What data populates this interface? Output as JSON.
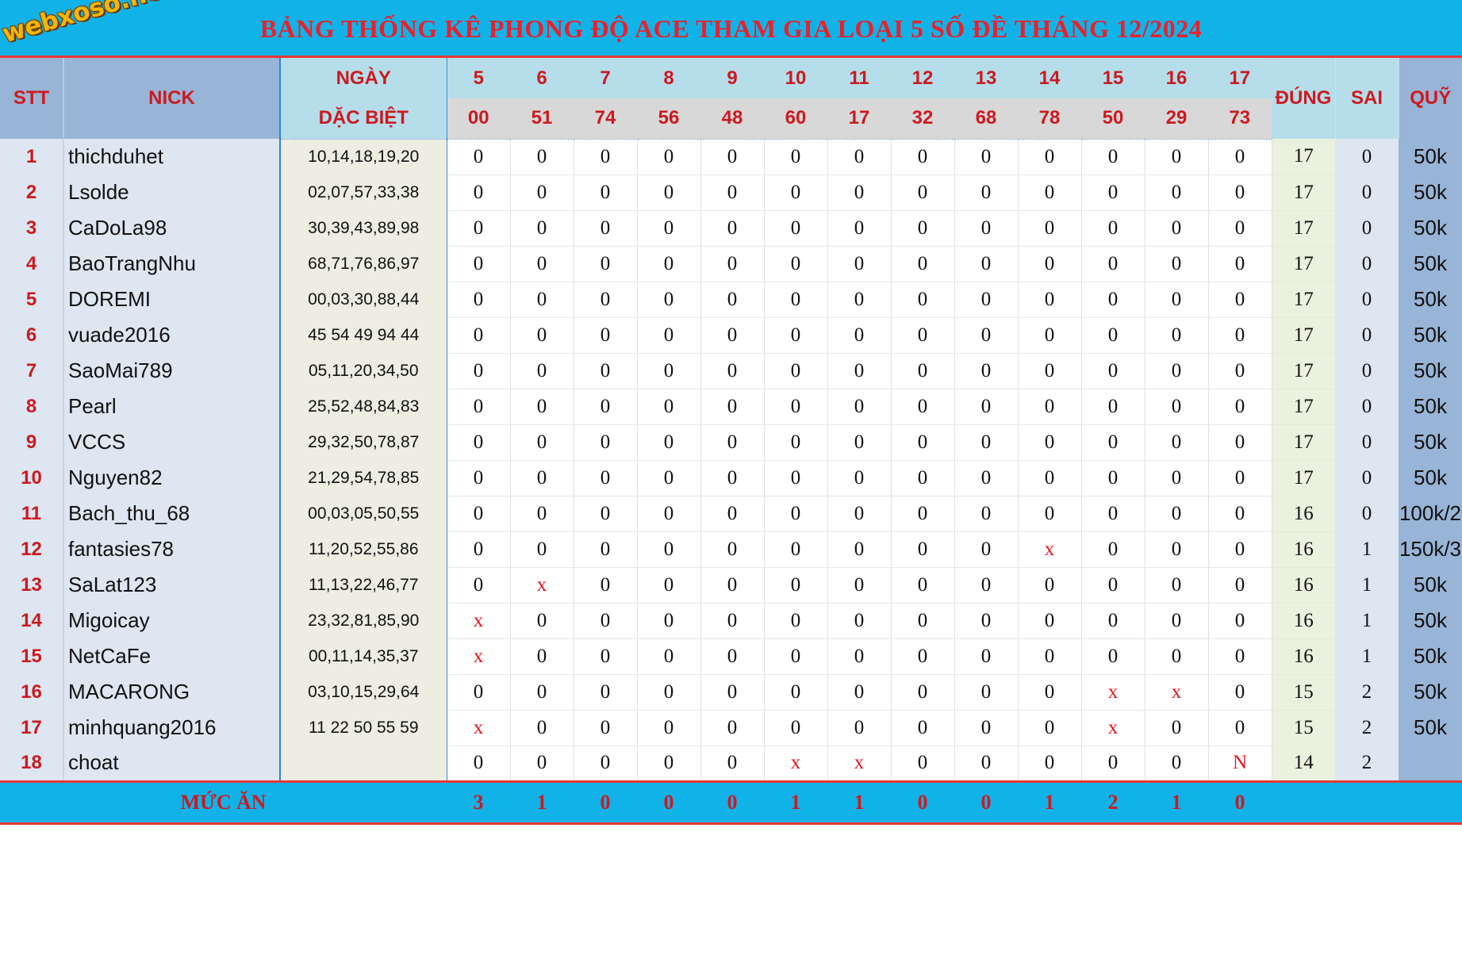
{
  "logo": "webxoso.net",
  "title": "BẢNG THỐNG KÊ PHONG ĐỘ ACE THAM GIA LOẠI 5 SỐ ĐỀ THÁNG 12/2024",
  "headers": {
    "stt": "STT",
    "nick": "NICK",
    "ngay": "NGÀY",
    "dac_biet": "DẶC BIỆT",
    "dung": "ĐÚNG",
    "sai": "SAI",
    "quy": "QUỸ"
  },
  "days": [
    "5",
    "6",
    "7",
    "8",
    "9",
    "10",
    "11",
    "12",
    "13",
    "14",
    "15",
    "16",
    "17"
  ],
  "results": [
    "00",
    "51",
    "74",
    "56",
    "48",
    "60",
    "17",
    "32",
    "68",
    "78",
    "50",
    "29",
    "73"
  ],
  "rows": [
    {
      "stt": "1",
      "nick": "thichduhet",
      "numbers": "10,14,18,19,20",
      "marks": [
        "0",
        "0",
        "0",
        "0",
        "0",
        "0",
        "0",
        "0",
        "0",
        "0",
        "0",
        "0",
        "0"
      ],
      "dung": "17",
      "sai": "0",
      "quy": "50k"
    },
    {
      "stt": "2",
      "nick": "Lsolde",
      "numbers": "02,07,57,33,38",
      "marks": [
        "0",
        "0",
        "0",
        "0",
        "0",
        "0",
        "0",
        "0",
        "0",
        "0",
        "0",
        "0",
        "0"
      ],
      "dung": "17",
      "sai": "0",
      "quy": "50k"
    },
    {
      "stt": "3",
      "nick": "CaDoLa98",
      "numbers": "30,39,43,89,98",
      "marks": [
        "0",
        "0",
        "0",
        "0",
        "0",
        "0",
        "0",
        "0",
        "0",
        "0",
        "0",
        "0",
        "0"
      ],
      "dung": "17",
      "sai": "0",
      "quy": "50k"
    },
    {
      "stt": "4",
      "nick": "BaoTrangNhu",
      "numbers": "68,71,76,86,97",
      "marks": [
        "0",
        "0",
        "0",
        "0",
        "0",
        "0",
        "0",
        "0",
        "0",
        "0",
        "0",
        "0",
        "0"
      ],
      "dung": "17",
      "sai": "0",
      "quy": "50k"
    },
    {
      "stt": "5",
      "nick": "DOREMI",
      "numbers": "00,03,30,88,44",
      "marks": [
        "0",
        "0",
        "0",
        "0",
        "0",
        "0",
        "0",
        "0",
        "0",
        "0",
        "0",
        "0",
        "0"
      ],
      "dung": "17",
      "sai": "0",
      "quy": "50k"
    },
    {
      "stt": "6",
      "nick": "vuade2016",
      "numbers": "45 54 49 94 44",
      "marks": [
        "0",
        "0",
        "0",
        "0",
        "0",
        "0",
        "0",
        "0",
        "0",
        "0",
        "0",
        "0",
        "0"
      ],
      "dung": "17",
      "sai": "0",
      "quy": "50k"
    },
    {
      "stt": "7",
      "nick": "SaoMai789",
      "numbers": "05,11,20,34,50",
      "marks": [
        "0",
        "0",
        "0",
        "0",
        "0",
        "0",
        "0",
        "0",
        "0",
        "0",
        "0",
        "0",
        "0"
      ],
      "dung": "17",
      "sai": "0",
      "quy": "50k"
    },
    {
      "stt": "8",
      "nick": "Pearl",
      "numbers": "25,52,48,84,83",
      "marks": [
        "0",
        "0",
        "0",
        "0",
        "0",
        "0",
        "0",
        "0",
        "0",
        "0",
        "0",
        "0",
        "0"
      ],
      "dung": "17",
      "sai": "0",
      "quy": "50k"
    },
    {
      "stt": "9",
      "nick": "VCCS",
      "numbers": "29,32,50,78,87",
      "marks": [
        "0",
        "0",
        "0",
        "0",
        "0",
        "0",
        "0",
        "0",
        "0",
        "0",
        "0",
        "0",
        "0"
      ],
      "dung": "17",
      "sai": "0",
      "quy": "50k"
    },
    {
      "stt": "10",
      "nick": "Nguyen82",
      "numbers": "21,29,54,78,85",
      "marks": [
        "0",
        "0",
        "0",
        "0",
        "0",
        "0",
        "0",
        "0",
        "0",
        "0",
        "0",
        "0",
        "0"
      ],
      "dung": "17",
      "sai": "0",
      "quy": "50k"
    },
    {
      "stt": "11",
      "nick": "Bach_thu_68",
      "numbers": "00,03,05,50,55",
      "marks": [
        "0",
        "0",
        "0",
        "0",
        "0",
        "0",
        "0",
        "0",
        "0",
        "0",
        "0",
        "0",
        "0"
      ],
      "dung": "16",
      "sai": "0",
      "quy": "100k/2"
    },
    {
      "stt": "12",
      "nick": "fantasies78",
      "numbers": "11,20,52,55,86",
      "marks": [
        "0",
        "0",
        "0",
        "0",
        "0",
        "0",
        "0",
        "0",
        "0",
        "x",
        "0",
        "0",
        "0"
      ],
      "dung": "16",
      "sai": "1",
      "quy": "150k/3"
    },
    {
      "stt": "13",
      "nick": "SaLat123",
      "numbers": "11,13,22,46,77",
      "marks": [
        "0",
        "x",
        "0",
        "0",
        "0",
        "0",
        "0",
        "0",
        "0",
        "0",
        "0",
        "0",
        "0"
      ],
      "dung": "16",
      "sai": "1",
      "quy": "50k"
    },
    {
      "stt": "14",
      "nick": "Migoicay",
      "numbers": "23,32,81,85,90",
      "marks": [
        "x",
        "0",
        "0",
        "0",
        "0",
        "0",
        "0",
        "0",
        "0",
        "0",
        "0",
        "0",
        "0"
      ],
      "dung": "16",
      "sai": "1",
      "quy": "50k"
    },
    {
      "stt": "15",
      "nick": "NetCaFe",
      "numbers": "00,11,14,35,37",
      "marks": [
        "x",
        "0",
        "0",
        "0",
        "0",
        "0",
        "0",
        "0",
        "0",
        "0",
        "0",
        "0",
        "0"
      ],
      "dung": "16",
      "sai": "1",
      "quy": "50k"
    },
    {
      "stt": "16",
      "nick": "MACARONG",
      "numbers": "03,10,15,29,64",
      "marks": [
        "0",
        "0",
        "0",
        "0",
        "0",
        "0",
        "0",
        "0",
        "0",
        "0",
        "x",
        "x",
        "0"
      ],
      "dung": "15",
      "sai": "2",
      "quy": "50k"
    },
    {
      "stt": "17",
      "nick": "minhquang2016",
      "numbers": "11 22 50 55 59",
      "marks": [
        "x",
        "0",
        "0",
        "0",
        "0",
        "0",
        "0",
        "0",
        "0",
        "0",
        "x",
        "0",
        "0"
      ],
      "dung": "15",
      "sai": "2",
      "quy": "50k"
    },
    {
      "stt": "18",
      "nick": "choat",
      "numbers": "",
      "marks": [
        "0",
        "0",
        "0",
        "0",
        "0",
        "x",
        "x",
        "0",
        "0",
        "0",
        "0",
        "0",
        "N"
      ],
      "dung": "14",
      "sai": "2",
      "quy": ""
    }
  ],
  "footer": {
    "label": "MỨC ĂN",
    "values": [
      "3",
      "1",
      "0",
      "0",
      "0",
      "1",
      "1",
      "0",
      "0",
      "1",
      "2",
      "1",
      "0"
    ]
  }
}
